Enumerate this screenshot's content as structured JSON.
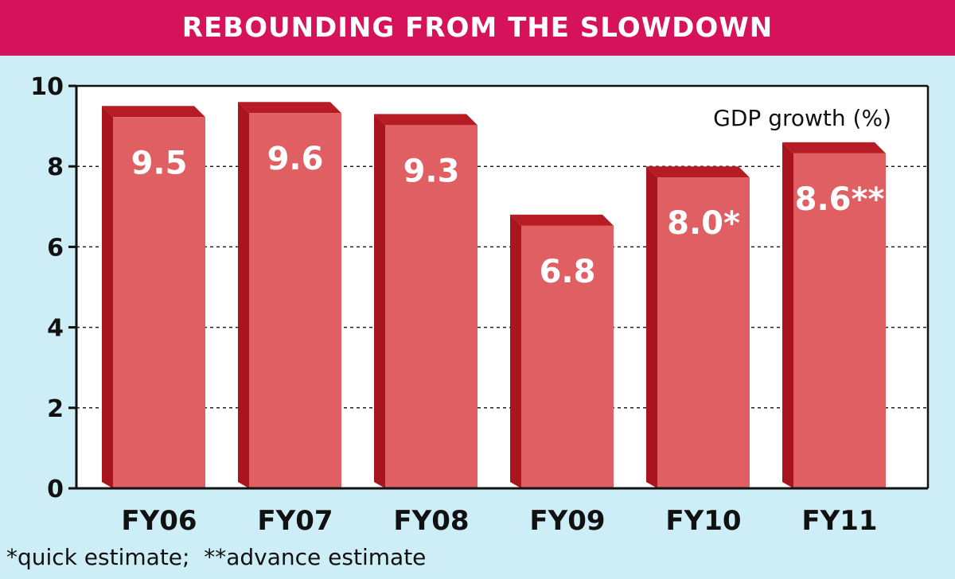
{
  "title": "REBOUNDING FROM THE SLOWDOWN",
  "footnote": "*quick estimate;  **advance estimate",
  "colors": {
    "title_bg": "#d6135a",
    "background": "#cdeef6",
    "plot_bg": "#ffffff",
    "bar_front": "#e05f62",
    "bar_side": "#a8151f",
    "bar_top": "#b71c24"
  },
  "chart_data": {
    "type": "bar",
    "title": "REBOUNDING FROM THE SLOWDOWN",
    "ylabel": "GDP growth (%)",
    "xlabel": "",
    "categories": [
      "FY06",
      "FY07",
      "FY08",
      "FY09",
      "FY10",
      "FY11"
    ],
    "values": [
      9.5,
      9.6,
      9.3,
      6.8,
      8.0,
      8.6
    ],
    "value_labels": [
      "9.5",
      "9.6",
      "9.3",
      "6.8",
      "8.0*",
      "8.6**"
    ],
    "ylim": [
      0,
      10
    ],
    "yticks": [
      0,
      2,
      4,
      6,
      8,
      10
    ],
    "grid": true,
    "annotation": "GDP growth (%)"
  }
}
